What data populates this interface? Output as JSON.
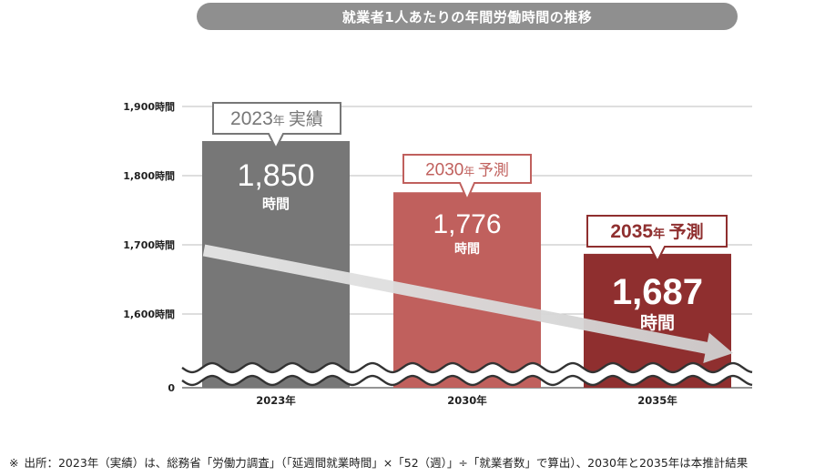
{
  "title": "就業者1人あたりの年間労働時間の推移",
  "chart_data": {
    "type": "bar",
    "categories": [
      "2023年",
      "2030年",
      "2035年"
    ],
    "values": [
      1850,
      1776,
      1687
    ],
    "y_axis": {
      "broken": true,
      "ylim": [
        1560,
        1900
      ],
      "ticks": [
        {
          "value": 1900,
          "label": "1,900時間"
        },
        {
          "value": 1800,
          "label": "1,800時間"
        },
        {
          "value": 1700,
          "label": "1,700時間"
        },
        {
          "value": 1600,
          "label": "1,600時間"
        }
      ],
      "zero_label": "0"
    },
    "grid": true,
    "bar_colors": [
      "#777777",
      "#c0605d",
      "#8f2f2f"
    ],
    "data_labels": [
      {
        "number": "1,850",
        "unit": "時間"
      },
      {
        "number": "1,776",
        "unit": "時間"
      },
      {
        "number": "1,687",
        "unit": "時間"
      }
    ],
    "callouts": [
      {
        "year": "2023",
        "year_suffix": "年",
        "kind": "実績",
        "color": "#777777"
      },
      {
        "year": "2030",
        "year_suffix": "年",
        "kind": "予測",
        "color": "#c0605d"
      },
      {
        "year": "2035",
        "year_suffix": "年",
        "kind": "予測",
        "color": "#8f2f2f"
      }
    ],
    "trend_arrow": true
  },
  "footnote": {
    "mark": "※",
    "text": "出所：2023年（実績）は、総務省「労働力調査」（「延週間就業時間」×「52（週）」÷「就業者数」で算出）、2030年と2035年は本推計結果"
  }
}
